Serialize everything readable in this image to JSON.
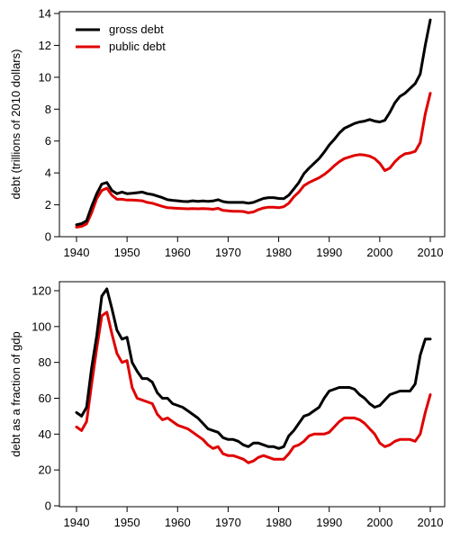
{
  "chart_data": [
    {
      "type": "line",
      "ylabel": "debt (trillions of 2010 dollars)",
      "xlim": [
        1940,
        2010
      ],
      "ylim": [
        0,
        14
      ],
      "xticks": [
        "1940",
        "1950",
        "1960",
        "1970",
        "1980",
        "1990",
        "2000",
        "2010"
      ],
      "yticks": [
        "0",
        "2",
        "4",
        "6",
        "8",
        "10",
        "12",
        "14"
      ],
      "grid": false,
      "legend": {
        "position": "top-left"
      },
      "x": [
        1940,
        1941,
        1942,
        1943,
        1944,
        1945,
        1946,
        1947,
        1948,
        1949,
        1950,
        1951,
        1952,
        1953,
        1954,
        1955,
        1956,
        1957,
        1958,
        1959,
        1960,
        1961,
        1962,
        1963,
        1964,
        1965,
        1966,
        1967,
        1968,
        1969,
        1970,
        1971,
        1972,
        1973,
        1974,
        1975,
        1976,
        1977,
        1978,
        1979,
        1980,
        1981,
        1982,
        1983,
        1984,
        1985,
        1986,
        1987,
        1988,
        1989,
        1990,
        1991,
        1992,
        1993,
        1994,
        1995,
        1996,
        1997,
        1998,
        1999,
        2000,
        2001,
        2002,
        2003,
        2004,
        2005,
        2006,
        2007,
        2008,
        2009,
        2010
      ],
      "series": [
        {
          "name": "gross debt",
          "color": "#000000",
          "values": [
            0.75,
            0.82,
            1.0,
            1.9,
            2.7,
            3.3,
            3.4,
            2.9,
            2.7,
            2.8,
            2.7,
            2.72,
            2.76,
            2.8,
            2.7,
            2.65,
            2.55,
            2.45,
            2.32,
            2.28,
            2.25,
            2.22,
            2.2,
            2.25,
            2.22,
            2.24,
            2.22,
            2.24,
            2.32,
            2.2,
            2.15,
            2.15,
            2.15,
            2.15,
            2.1,
            2.15,
            2.28,
            2.4,
            2.45,
            2.45,
            2.4,
            2.38,
            2.6,
            3.0,
            3.4,
            3.95,
            4.3,
            4.6,
            4.9,
            5.3,
            5.75,
            6.1,
            6.5,
            6.8,
            6.95,
            7.1,
            7.2,
            7.25,
            7.35,
            7.25,
            7.2,
            7.3,
            7.8,
            8.4,
            8.8,
            9.0,
            9.3,
            9.6,
            10.2,
            12.0,
            13.6
          ]
        },
        {
          "name": "public debt",
          "color": "#e00000",
          "values": [
            0.6,
            0.65,
            0.8,
            1.5,
            2.4,
            2.9,
            3.05,
            2.6,
            2.35,
            2.35,
            2.3,
            2.3,
            2.28,
            2.25,
            2.15,
            2.1,
            2.0,
            1.9,
            1.82,
            1.8,
            1.78,
            1.76,
            1.75,
            1.76,
            1.75,
            1.76,
            1.75,
            1.72,
            1.78,
            1.65,
            1.62,
            1.6,
            1.6,
            1.58,
            1.5,
            1.55,
            1.7,
            1.8,
            1.85,
            1.85,
            1.82,
            1.88,
            2.1,
            2.5,
            2.8,
            3.2,
            3.4,
            3.55,
            3.7,
            3.9,
            4.15,
            4.45,
            4.7,
            4.9,
            5.0,
            5.1,
            5.15,
            5.12,
            5.05,
            4.9,
            4.6,
            4.15,
            4.3,
            4.7,
            5.0,
            5.2,
            5.25,
            5.35,
            5.9,
            7.7,
            9.0
          ]
        }
      ]
    },
    {
      "type": "line",
      "ylabel": "debt as a fraction of gdp",
      "xlim": [
        1940,
        2010
      ],
      "ylim": [
        0,
        120
      ],
      "xticks": [
        "1940",
        "1950",
        "1960",
        "1970",
        "1980",
        "1990",
        "2000",
        "2010"
      ],
      "yticks": [
        "0",
        "20",
        "40",
        "60",
        "80",
        "100",
        "120"
      ],
      "grid": false,
      "x": [
        1940,
        1941,
        1942,
        1943,
        1944,
        1945,
        1946,
        1947,
        1948,
        1949,
        1950,
        1951,
        1952,
        1953,
        1954,
        1955,
        1956,
        1957,
        1958,
        1959,
        1960,
        1961,
        1962,
        1963,
        1964,
        1965,
        1966,
        1967,
        1968,
        1969,
        1970,
        1971,
        1972,
        1973,
        1974,
        1975,
        1976,
        1977,
        1978,
        1979,
        1980,
        1981,
        1982,
        1983,
        1984,
        1985,
        1986,
        1987,
        1988,
        1989,
        1990,
        1991,
        1992,
        1993,
        1994,
        1995,
        1996,
        1997,
        1998,
        1999,
        2000,
        2001,
        2002,
        2003,
        2004,
        2005,
        2006,
        2007,
        2008,
        2009,
        2010
      ],
      "series": [
        {
          "name": "gross debt",
          "color": "#000000",
          "values": [
            52,
            50,
            55,
            77,
            95,
            117,
            121,
            110,
            98,
            93,
            94,
            80,
            75,
            71,
            71,
            69,
            63,
            60,
            60,
            57,
            56,
            55,
            53,
            51,
            49,
            46,
            43,
            42,
            41,
            38,
            37,
            37,
            36,
            34,
            33,
            35,
            35,
            34,
            33,
            33,
            32,
            33,
            39,
            42,
            46,
            50,
            51,
            53,
            55,
            60,
            64,
            65,
            66,
            66,
            66,
            65,
            62,
            60,
            57,
            55,
            56,
            59,
            62,
            63,
            64,
            64,
            64,
            68,
            84,
            93,
            93
          ]
        },
        {
          "name": "public debt",
          "color": "#e00000",
          "values": [
            44,
            42,
            47,
            68,
            88,
            106,
            108,
            96,
            85,
            80,
            81,
            66,
            60,
            59,
            58,
            57,
            51,
            48,
            49,
            47,
            45,
            44,
            43,
            41,
            39,
            37,
            34,
            32,
            33,
            29,
            28,
            28,
            27,
            26,
            24,
            25,
            27,
            28,
            27,
            26,
            26,
            26,
            29,
            33,
            34,
            36,
            39,
            40,
            40,
            40,
            41,
            44,
            47,
            49,
            49,
            49,
            48,
            46,
            43,
            40,
            35,
            33,
            34,
            36,
            37,
            37,
            37,
            36,
            40,
            52,
            62
          ]
        }
      ]
    }
  ]
}
